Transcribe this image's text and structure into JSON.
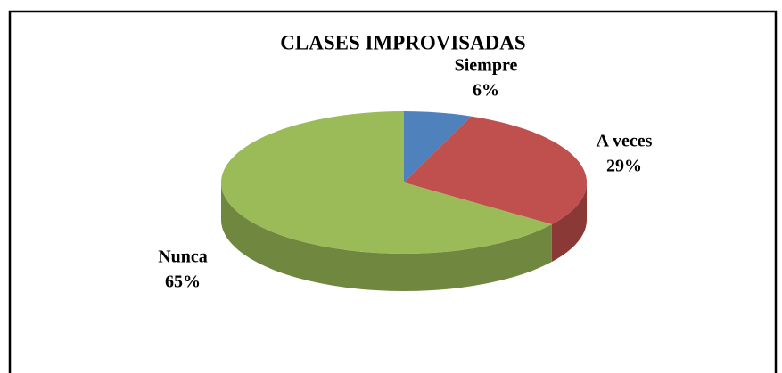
{
  "chart_data": {
    "type": "pie3d",
    "title": "CLASES IMPROVISADAS",
    "categories": [
      "Siempre",
      "A veces",
      "Nunca"
    ],
    "values": [
      6,
      29,
      65
    ],
    "value_labels": [
      "6%",
      "29%",
      "65%"
    ],
    "colors": [
      "#4f81bd",
      "#c0504d",
      "#9bbb59"
    ]
  }
}
